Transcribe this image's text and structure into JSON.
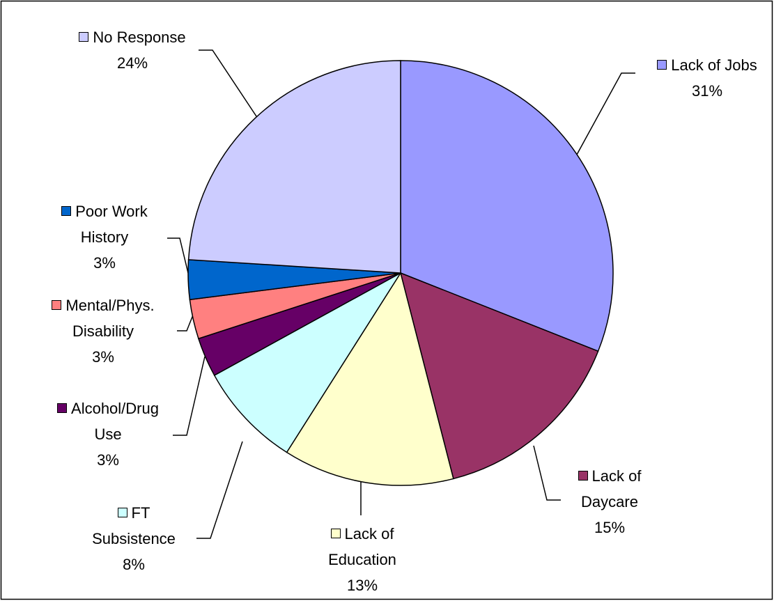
{
  "chart_data": {
    "type": "pie",
    "categories": [
      "Lack of Jobs",
      "Lack of Daycare",
      "Lack of Education",
      "FT Subsistence",
      "Alcohol/Drug Use",
      "Mental/Phys. Disability",
      "Poor Work History",
      "No Response"
    ],
    "values": [
      31,
      15,
      13,
      8,
      3,
      3,
      3,
      24
    ],
    "value_labels": [
      "31%",
      "15%",
      "13%",
      "8%",
      "3%",
      "3%",
      "3%",
      "24%"
    ],
    "colors": [
      "#9999ff",
      "#993366",
      "#ffffcc",
      "#ccffff",
      "#660066",
      "#ff8080",
      "#0066cc",
      "#ccccff"
    ]
  }
}
